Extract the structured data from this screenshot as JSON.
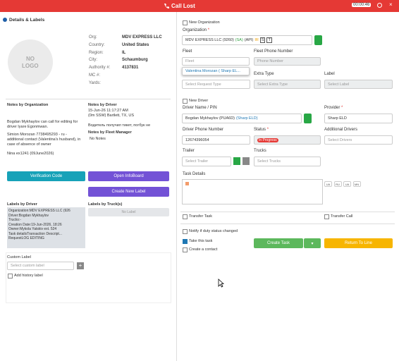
{
  "header": {
    "title": "Call Lost",
    "timer": "00:00:46"
  },
  "left": {
    "title": "Details & Labels",
    "logo": [
      "NO",
      "LOGO"
    ],
    "details": [
      {
        "label": "Org:",
        "value": "MDV EXPRESS LLC"
      },
      {
        "label": "Country:",
        "value": "United States"
      },
      {
        "label": "Region:",
        "value": "IL"
      },
      {
        "label": "City:",
        "value": "Schaumburg"
      },
      {
        "label": "Authority #:",
        "value": "4137831"
      },
      {
        "label": "MC #:"
      },
      {
        "label": "Yards:"
      }
    ],
    "org_notes": {
      "title": "Notes by Organization",
      "items": [
        "Bogdan Mykhaylov can call for editing for driver Iyare Egonmwan.",
        "Simion Morozan 7738495293 - ru - additional contact (Valentina's husband), in case of absence of owner",
        "Nina ex1241 (09June2026)"
      ]
    },
    "driver_notes": {
      "title": "Notes by Driver",
      "date": "15-Jun-26 11:17:27 AM",
      "location": "(0m SSW) Bartlett, TX, US",
      "text": "Водитель получил тикет, погбук не"
    },
    "fleet_notes": {
      "title": "Notes by Fleet Manager",
      "text": "No Notes"
    },
    "buttons": {
      "verification": "Verification Code",
      "infoboard": "Open InfoBoard",
      "new_label": "Create New Label"
    },
    "driver_labels": {
      "title": "Labels by Driver",
      "rows": [
        [
          "Organization:",
          "MDV EXPRESS LLC (926"
        ],
        [
          "Driver:",
          "Bogdan Mykhaylov"
        ],
        [
          "Trucks:",
          "-"
        ],
        [
          "Creation Date:",
          "19-Jun-2026, 18:26"
        ],
        [
          "Owner:",
          "Mykola Yatskiv ext. 524"
        ],
        [
          "Task details",
          "Transaction Descript..."
        ],
        [
          "Request",
          "LOG EDITING"
        ]
      ]
    },
    "truck_labels": {
      "title": "Labels by Truck(s)",
      "empty": "No Label"
    },
    "custom_label": {
      "title": "Custom Label",
      "placeholder": "Select custom label",
      "history": "Add history label"
    }
  },
  "right": {
    "required_mark": "*",
    "new_org": "New Organization",
    "org_label": "Organization",
    "org_value": "MDV EXPRESS LLC (9260)",
    "org_sa": "(SA)",
    "org_api": "(API)",
    "org_badges": [
      "IR",
      "S",
      "T"
    ],
    "fleet": "Fleet",
    "fleet_phone": "Fleet Phone Number",
    "fleet_placeholder": "Fleet",
    "fleet_option": "Valentina Morozan ( Sharp EL...",
    "phone_placeholder": "Phone Number",
    "extra_type": "Extra Type",
    "label": "Label",
    "request_placeholder": "Select Request Type",
    "extra_placeholder": "Select Extra Type",
    "label_placeholder": "Select Label",
    "new_driver": "New Driver",
    "driver_label": "Driver Name / PIN",
    "provider_label": "Provider",
    "driver_value": "Bogdan Mykhaylov (PUA6D)",
    "driver_eld": "(Sharp ELD)",
    "provider_value": "Sharp ELD",
    "driver_phone": "Driver Phone Number",
    "status": "Status",
    "additional": "Additional Drivers",
    "phone_value": "12674396054",
    "status_value": "In Progress",
    "drivers_placeholder": "Select Drivers",
    "trailer": "Trailer",
    "trucks": "Trucks",
    "trailer_placeholder": "Select Trailer",
    "trucks_placeholder": "Select Trucks",
    "task_details": "Task Details",
    "langs": [
      "UA",
      "RU",
      "UA",
      "MN"
    ],
    "transfer_task": "Transfer Task",
    "transfer_call": "Transfer Call",
    "notify": "Notify if duty status changed",
    "take_task": "Take this task",
    "create_contact": "Create a contact",
    "create_task": "Create Task",
    "return": "Return To Line"
  }
}
